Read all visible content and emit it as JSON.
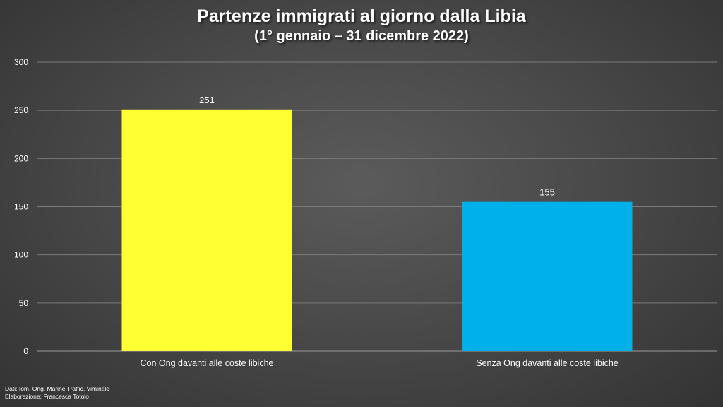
{
  "chart_data": {
    "type": "bar",
    "title": "Partenze immigrati al giorno dalla Libia",
    "subtitle": "(1° gennaio – 31 dicembre 2022)",
    "categories": [
      "Con Ong davanti alle coste libiche",
      "Senza Ong davanti alle coste libiche"
    ],
    "values": [
      251,
      155
    ],
    "data_labels": [
      "251",
      "155"
    ],
    "bar_colors": [
      "#ffff33",
      "#00b0e8"
    ],
    "ylim": [
      0,
      300
    ],
    "yticks": [
      0,
      50,
      100,
      150,
      200,
      250,
      300
    ],
    "grid": true,
    "legend": "none"
  },
  "source": {
    "line1": "Dati: Iom, Ong, Marine Traffic, Viminale",
    "line2": "Elaborazione: Francesca Totolo"
  },
  "colors": {
    "text": "#ffffff",
    "grid": "#7a7a7a"
  }
}
